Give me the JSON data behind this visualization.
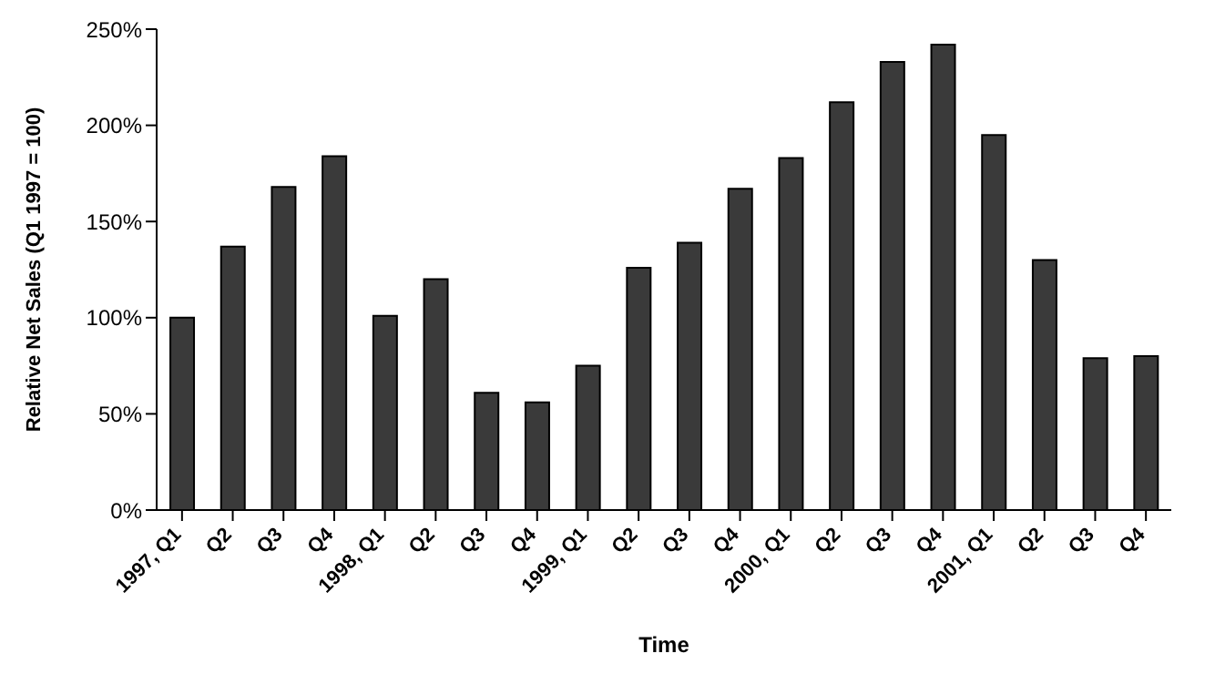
{
  "chart_data": {
    "type": "bar",
    "xlabel": "Time",
    "ylabel": "Relative Net Sales (Q1 1997 = 100)",
    "categories": [
      "1997, Q1",
      "Q2",
      "Q3",
      "Q4",
      "1998, Q1",
      "Q2",
      "Q3",
      "Q4",
      "1999, Q1",
      "Q2",
      "Q3",
      "Q4",
      "2000, Q1",
      "Q2",
      "Q3",
      "Q4",
      "2001, Q1",
      "Q2",
      "Q3",
      "Q4"
    ],
    "values": [
      100,
      137,
      168,
      184,
      101,
      120,
      61,
      56,
      75,
      126,
      139,
      167,
      183,
      212,
      233,
      242,
      195,
      130,
      79,
      80
    ],
    "color": "#3a3a3a",
    "ylim": [
      0,
      250
    ],
    "yticks": [
      {
        "value": 0,
        "label": "0%"
      },
      {
        "value": 50,
        "label": "50%"
      },
      {
        "value": 100,
        "label": "100%"
      },
      {
        "value": 150,
        "label": "150%"
      },
      {
        "value": 200,
        "label": "200%"
      },
      {
        "value": 250,
        "label": "250%"
      }
    ],
    "grid": false
  }
}
